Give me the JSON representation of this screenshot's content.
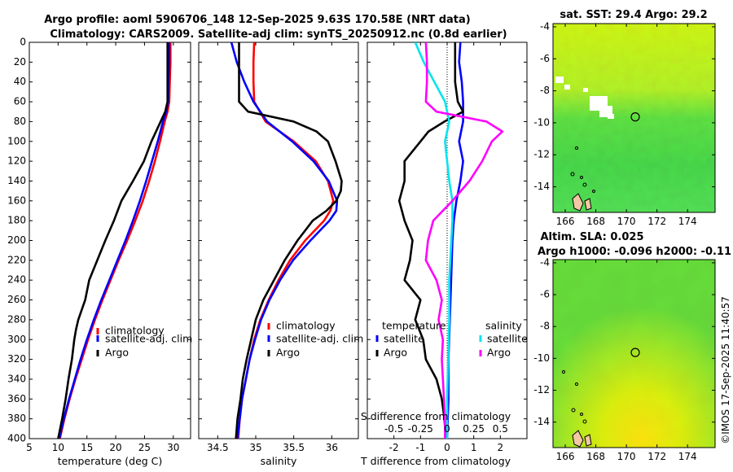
{
  "title_line1": "Argo profile: aoml 5906706_148 12-Sep-2025 9.63S 170.58E (NRT data)",
  "title_line2": "Climatology: CARS2009. Satellite-adj clim: synTS_20250912.nc (0.8d earlier)",
  "credit": "©IMOS 17-Sep-2025 11:40:57",
  "colors": {
    "climatology": "#ff0000",
    "satellite": "#0000ff",
    "argo": "#000000",
    "sat_salinity": "#00e5ee",
    "argo_salinity": "#ff00ff"
  },
  "chart_data": [
    {
      "type": "line",
      "id": "temperature",
      "xlabel": "temperature (deg C)",
      "ylabel": "",
      "xlim": [
        5,
        33
      ],
      "ylim": [
        400,
        0
      ],
      "xticks": [
        5,
        10,
        15,
        20,
        25,
        30
      ],
      "yticks": [
        0,
        20,
        40,
        60,
        80,
        100,
        120,
        140,
        160,
        180,
        200,
        220,
        240,
        260,
        280,
        300,
        320,
        340,
        360,
        380,
        400
      ],
      "legend": {
        "position": "lower-right",
        "entries": [
          "climatology",
          "satellite-adj. clim",
          "Argo"
        ]
      },
      "series": [
        {
          "name": "climatology",
          "color": "#ff0000",
          "depth": [
            0,
            20,
            40,
            60,
            70,
            80,
            100,
            120,
            140,
            160,
            180,
            200,
            220,
            240,
            260,
            280,
            300,
            320,
            340,
            360,
            380,
            400
          ],
          "values": [
            29.5,
            29.5,
            29.4,
            29.3,
            29.0,
            28.5,
            27.7,
            26.8,
            25.8,
            24.7,
            23.4,
            22.0,
            20.5,
            19.1,
            17.7,
            16.4,
            15.2,
            14.1,
            13.0,
            12.0,
            11.1,
            10.3
          ]
        },
        {
          "name": "satellite-adj. clim",
          "color": "#0000ff",
          "depth": [
            0,
            20,
            40,
            60,
            70,
            80,
            100,
            120,
            140,
            160,
            180,
            200,
            220,
            240,
            260,
            280,
            300,
            320,
            340,
            360,
            380,
            400
          ],
          "values": [
            29.3,
            29.3,
            29.2,
            29.1,
            28.8,
            28.2,
            27.3,
            26.3,
            25.3,
            24.2,
            23.0,
            21.7,
            20.3,
            18.9,
            17.5,
            16.2,
            15.0,
            13.9,
            12.9,
            11.9,
            11.0,
            10.2
          ]
        },
        {
          "name": "Argo",
          "color": "#000000",
          "depth": [
            0,
            20,
            40,
            60,
            70,
            80,
            90,
            100,
            120,
            140,
            160,
            180,
            200,
            220,
            240,
            260,
            280,
            290,
            300,
            320,
            340,
            360,
            380,
            400
          ],
          "values": [
            29.0,
            29.0,
            29.0,
            29.0,
            28.6,
            27.8,
            27.0,
            26.2,
            24.9,
            23.0,
            21.0,
            19.7,
            18.2,
            16.8,
            15.4,
            14.7,
            13.5,
            13.1,
            12.8,
            12.4,
            11.8,
            11.3,
            10.7,
            10.0
          ]
        }
      ]
    },
    {
      "type": "line",
      "id": "salinity",
      "xlabel": "salinity",
      "ylabel": "",
      "xlim": [
        34.25,
        36.35
      ],
      "ylim": [
        400,
        0
      ],
      "xticks": [
        34.5,
        35,
        35.5,
        36
      ],
      "legend": {
        "position": "lower-right",
        "entries": [
          "climatology",
          "satellite-adj. clim",
          "Argo"
        ]
      },
      "series": [
        {
          "name": "climatology",
          "color": "#ff0000",
          "depth": [
            0,
            20,
            40,
            60,
            80,
            100,
            120,
            140,
            160,
            170,
            180,
            200,
            220,
            240,
            260,
            280,
            300,
            320,
            340,
            360,
            380,
            400
          ],
          "values": [
            34.98,
            34.97,
            34.97,
            34.98,
            35.13,
            35.5,
            35.79,
            35.95,
            36.02,
            35.98,
            35.9,
            35.65,
            35.45,
            35.3,
            35.17,
            35.06,
            34.98,
            34.92,
            34.87,
            34.82,
            34.79,
            34.77
          ]
        },
        {
          "name": "satellite-adj. clim",
          "color": "#0000ff",
          "depth": [
            0,
            20,
            40,
            60,
            80,
            100,
            120,
            140,
            160,
            170,
            180,
            200,
            220,
            240,
            260,
            280,
            300,
            320,
            340,
            360,
            380,
            400
          ],
          "values": [
            34.68,
            34.75,
            34.85,
            34.97,
            35.15,
            35.48,
            35.76,
            35.96,
            36.07,
            36.06,
            35.97,
            35.72,
            35.49,
            35.32,
            35.18,
            35.07,
            34.99,
            34.92,
            34.87,
            34.82,
            34.79,
            34.76
          ]
        },
        {
          "name": "Argo",
          "color": "#000000",
          "depth": [
            0,
            20,
            40,
            60,
            70,
            80,
            90,
            100,
            120,
            140,
            150,
            160,
            170,
            180,
            200,
            220,
            240,
            260,
            280,
            300,
            320,
            340,
            360,
            380,
            400
          ],
          "values": [
            34.78,
            34.78,
            34.78,
            34.78,
            34.9,
            35.5,
            35.8,
            35.95,
            36.05,
            36.13,
            36.12,
            36.06,
            35.93,
            35.75,
            35.55,
            35.38,
            35.24,
            35.1,
            35.0,
            34.94,
            34.88,
            34.83,
            34.8,
            34.76,
            34.74
          ]
        }
      ]
    },
    {
      "type": "line",
      "id": "difference",
      "xlabel": "T difference from climatology",
      "xlabel_top": "S difference from climatology",
      "xlim": [
        -3,
        3
      ],
      "ylim": [
        400,
        0
      ],
      "xticks": [
        -2,
        -1,
        0,
        1,
        2
      ],
      "sticks_labels": [
        "-0.5",
        "-0.25",
        "0",
        "0.25",
        "0.5"
      ],
      "sticks_values": [
        -0.5,
        -0.25,
        0,
        0.25,
        0.5
      ],
      "legend": {
        "position": "lower-right",
        "temp_title": "temperature",
        "sal_title": "salinity",
        "entries": [
          "satellite",
          "Argo",
          "satellite",
          "Argo"
        ]
      },
      "series": [
        {
          "name": "temperature satellite",
          "color": "#0000ff",
          "depth": [
            0,
            20,
            40,
            60,
            80,
            100,
            120,
            140,
            160,
            180,
            200,
            240,
            280,
            320,
            360,
            400
          ],
          "values": [
            0.5,
            0.45,
            0.55,
            0.6,
            0.6,
            0.45,
            0.6,
            0.5,
            0.35,
            0.25,
            0.2,
            0.15,
            0.1,
            0.05,
            0.05,
            0.0
          ]
        },
        {
          "name": "temperature Argo",
          "color": "#000000",
          "depth": [
            0,
            20,
            40,
            60,
            70,
            80,
            90,
            100,
            120,
            140,
            160,
            180,
            200,
            220,
            240,
            260,
            280,
            300,
            320,
            340,
            360,
            380,
            400
          ],
          "values": [
            0.3,
            0.3,
            0.3,
            0.4,
            0.6,
            -0.1,
            -0.7,
            -1.0,
            -1.6,
            -1.6,
            -1.8,
            -1.6,
            -1.3,
            -1.4,
            -1.6,
            -1.0,
            -1.2,
            -0.9,
            -0.8,
            -0.4,
            -0.2,
            -0.1,
            -0.05
          ]
        },
        {
          "name": "salinity satellite",
          "color": "#00e5ee",
          "depth": [
            0,
            20,
            40,
            60,
            80,
            100,
            120,
            140,
            160,
            180,
            200,
            240,
            280,
            320,
            360,
            400
          ],
          "values": [
            -0.3,
            -0.22,
            -0.12,
            -0.02,
            0.02,
            -0.02,
            0.0,
            0.02,
            0.05,
            0.05,
            0.04,
            0.02,
            0.02,
            0.01,
            0.0,
            0.0
          ]
        },
        {
          "name": "salinity Argo",
          "color": "#ff00ff",
          "depth": [
            0,
            20,
            40,
            60,
            70,
            80,
            90,
            100,
            120,
            140,
            160,
            180,
            200,
            220,
            240,
            260,
            280,
            300,
            320,
            340,
            360,
            380,
            400
          ],
          "values": [
            -0.2,
            -0.19,
            -0.19,
            -0.2,
            -0.1,
            0.37,
            0.52,
            0.42,
            0.33,
            0.21,
            0.05,
            -0.13,
            -0.18,
            -0.2,
            -0.1,
            -0.05,
            -0.08,
            -0.04,
            -0.05,
            -0.04,
            -0.03,
            -0.02,
            -0.02
          ]
        }
      ]
    },
    {
      "type": "heatmap",
      "id": "sst_map",
      "title": "sat. SST: 29.4 Argo: 29.2",
      "xlim": [
        165.2,
        175.8
      ],
      "ylim": [
        -15.6,
        -3.8
      ],
      "xticks": [
        166,
        168,
        170,
        172,
        174
      ],
      "yticks": [
        -4,
        -6,
        -8,
        -10,
        -12,
        -14
      ],
      "marker": {
        "lon": 170.58,
        "lat": -9.63
      }
    },
    {
      "type": "heatmap",
      "id": "sla_map",
      "title_line1": "Altim. SLA: 0.025",
      "title_line2": "Argo h1000: -0.096 h2000: -0.11",
      "xlim": [
        165.2,
        175.8
      ],
      "ylim": [
        -15.6,
        -3.8
      ],
      "xticks": [
        166,
        168,
        170,
        172,
        174
      ],
      "yticks": [
        -4,
        -6,
        -8,
        -10,
        -12,
        -14
      ],
      "marker": {
        "lon": 170.58,
        "lat": -9.63
      }
    }
  ]
}
